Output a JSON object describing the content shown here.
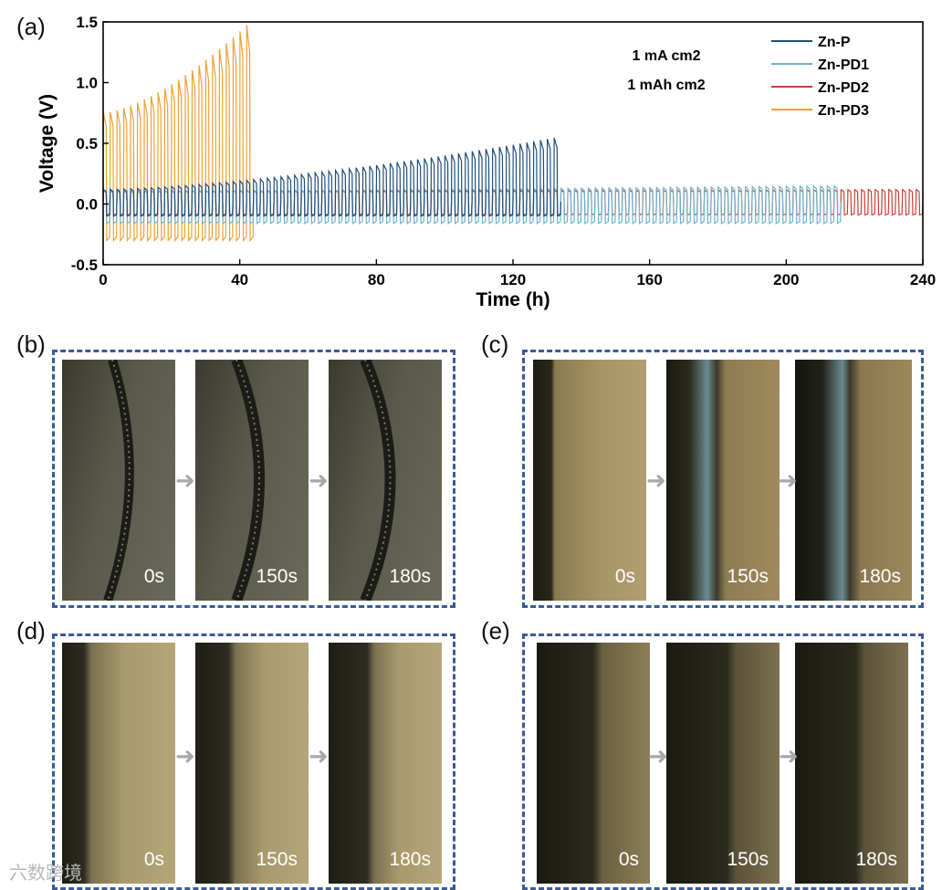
{
  "chart_data": {
    "type": "line",
    "panel_label": "(a)",
    "xlabel": "Time (h)",
    "ylabel": "Voltage (V)",
    "xlim": [
      0,
      240
    ],
    "ylim": [
      -0.5,
      1.5
    ],
    "xticks": [
      "0",
      "40",
      "80",
      "120",
      "160",
      "200",
      "240"
    ],
    "yticks": [
      "-0.5",
      "0.0",
      "0.5",
      "1.0",
      "1.5"
    ],
    "annotations": [
      "1 mA cm2",
      "1 mAh cm2"
    ],
    "legend_position": "top-right",
    "series": [
      {
        "name": "Zn-P",
        "color": "#1f4e79",
        "t_end": 133,
        "amp_start": 0.12,
        "amp_end": 0.55,
        "neg_amp": -0.1
      },
      {
        "name": "Zn-PD1",
        "color": "#6fb3cf",
        "t_end": 216,
        "amp_start": 0.11,
        "amp_end": 0.15,
        "neg_amp": -0.16
      },
      {
        "name": "Zn-PD2",
        "color": "#c9403a",
        "t_end": 240,
        "amp_start": 0.11,
        "amp_end": 0.12,
        "neg_amp": -0.09
      },
      {
        "name": "Zn-PD3",
        "color": "#f0a030",
        "t_end": 43,
        "amp_start": 0.75,
        "amp_end": 1.5,
        "neg_amp": -0.3
      }
    ]
  },
  "micrographs": {
    "b": {
      "label": "(b)",
      "times": [
        "0s",
        "150s",
        "180s"
      ]
    },
    "c": {
      "label": "(c)",
      "times": [
        "0s",
        "150s",
        "180s"
      ]
    },
    "d": {
      "label": "(d)",
      "times": [
        "0s",
        "150s",
        "180s"
      ]
    },
    "e": {
      "label": "(e)",
      "times": [
        "0s",
        "150s",
        "180s"
      ]
    }
  },
  "watermark": "六数跨境"
}
